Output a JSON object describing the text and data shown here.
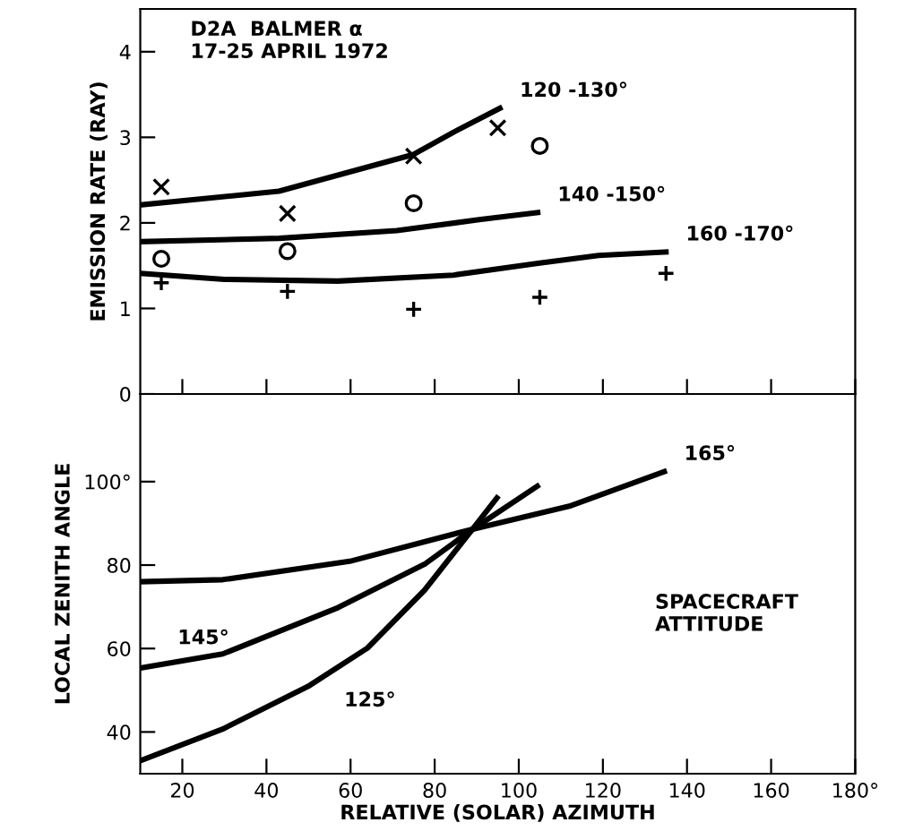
{
  "chart_data": [
    {
      "type": "scatter",
      "ylabel": "EMISSION RATE (RAY)",
      "xlim": [
        10,
        180
      ],
      "xticks": [
        20,
        40,
        60,
        80,
        100,
        120,
        140,
        160,
        180
      ],
      "ylim": [
        0,
        4.5
      ],
      "yticks": [
        0,
        1,
        2,
        3,
        4
      ],
      "tick_labels": "y",
      "series": [
        {
          "marker": "cross",
          "color": "#000000",
          "x": [
            15,
            45,
            75,
            95
          ],
          "values": [
            2.42,
            2.11,
            2.78,
            3.11
          ]
        },
        {
          "marker": "circle",
          "color": "#000000",
          "x": [
            15,
            45,
            75,
            105
          ],
          "values": [
            1.58,
            1.67,
            2.23,
            2.9
          ]
        },
        {
          "marker": "plus",
          "color": "#000000",
          "x": [
            15,
            45,
            75,
            105,
            135
          ],
          "values": [
            1.3,
            1.2,
            0.99,
            1.13,
            1.41
          ]
        },
        {
          "type": "line",
          "name": "120 -130°",
          "color": "#000000",
          "x": [
            10,
            43,
            75,
            84.5,
            95.5
          ],
          "values": [
            2.21,
            2.37,
            2.8,
            3.06,
            3.34
          ]
        },
        {
          "type": "line",
          "name": "140 -150°",
          "color": "#000000",
          "x": [
            10,
            43,
            71,
            91,
            104.5
          ],
          "values": [
            1.78,
            1.82,
            1.91,
            2.04,
            2.12
          ]
        },
        {
          "type": "line",
          "name": "160 -170°",
          "color": "#000000",
          "x": [
            10,
            30,
            57,
            84.5,
            105,
            119,
            135
          ],
          "values": [
            1.41,
            1.34,
            1.32,
            1.39,
            1.53,
            1.62,
            1.66
          ]
        }
      ],
      "annotations": [
        "D2A  BALMER α\n17-25 APRIL 1972"
      ]
    },
    {
      "type": "line",
      "xlabel": "RELATIVE (SOLAR) AZIMUTH",
      "ylabel": "LOCAL ZENITH ANGLE",
      "xlim": [
        10,
        180
      ],
      "xticks": [
        20,
        40,
        60,
        80,
        100,
        120,
        140,
        160,
        {
          "value": 180,
          "label": "180°"
        }
      ],
      "ylim": [
        30,
        121
      ],
      "yticks": [
        40,
        60,
        80,
        {
          "value": 100,
          "label": "100°"
        }
      ],
      "series": [
        {
          "name": "165°",
          "color": "#000000",
          "x": [
            10,
            29.6,
            59.8,
            88.6,
            112,
            134.6
          ],
          "values": [
            76.0,
            76.5,
            80.9,
            88.5,
            94.1,
            102.4
          ]
        },
        {
          "name": "145°",
          "color": "#000000",
          "x": [
            10,
            29.6,
            57,
            77.6,
            88.6,
            104.4
          ],
          "values": [
            55.3,
            58.7,
            69.8,
            80.2,
            88.3,
            98.9
          ]
        },
        {
          "name": "125°",
          "color": "#000000",
          "x": [
            10,
            29.6,
            50.2,
            64,
            77.6,
            88.6,
            94.8
          ],
          "values": [
            33.1,
            40.7,
            51.1,
            60.1,
            74.0,
            88.1,
            96.1
          ]
        }
      ],
      "annotations": [
        "SPACECRAFT\nATTITUDE"
      ]
    }
  ]
}
